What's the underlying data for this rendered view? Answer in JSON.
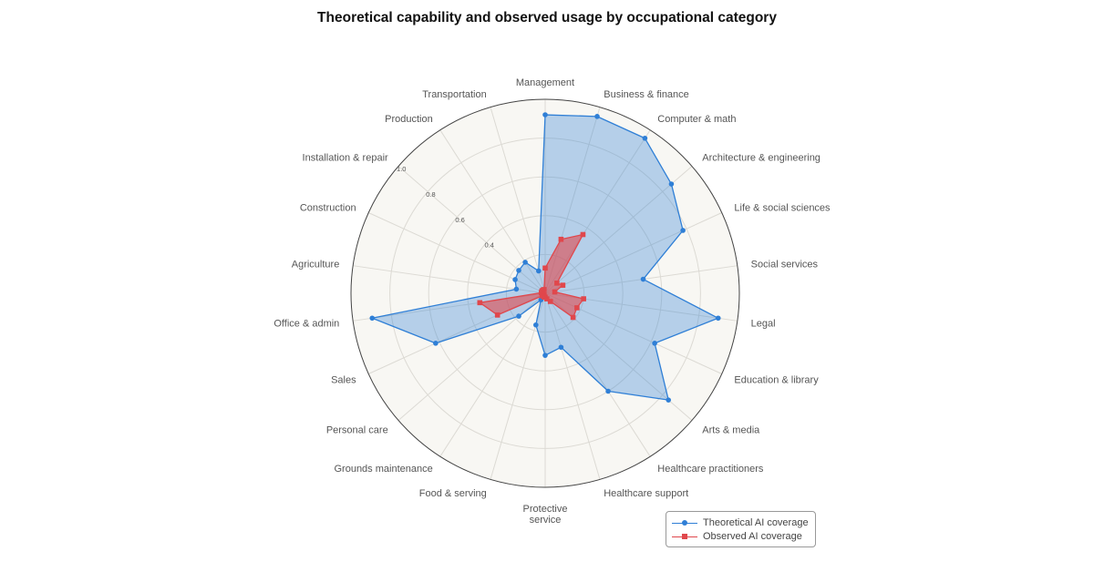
{
  "chart_data": {
    "type": "radar",
    "title": "Theoretical capability and observed usage by occupational category",
    "categories": [
      "Management",
      "Business & finance",
      "Computer & math",
      "Architecture & engineering",
      "Life & social sciences",
      "Social services",
      "Legal",
      "Education & library",
      "Arts & media",
      "Healthcare practitioners",
      "Healthcare support",
      "Protective service",
      "Food & serving",
      "Grounds maintenance",
      "Personal care",
      "Sales",
      "Office & admin",
      "Agriculture",
      "Construction",
      "Installation & repair",
      "Production",
      "Transportation"
    ],
    "radial_ticks": [
      0.4,
      0.6,
      0.8,
      1.0
    ],
    "rlim": [
      0,
      1.0
    ],
    "grid": true,
    "legend_position": "bottom-right",
    "series": [
      {
        "name": "Theoretical AI coverage",
        "color": "#2f7fd6",
        "marker": "circle",
        "values": [
          0.92,
          0.95,
          0.95,
          0.86,
          0.78,
          0.51,
          0.9,
          0.62,
          0.84,
          0.6,
          0.29,
          0.32,
          0.17,
          0.04,
          0.18,
          0.62,
          0.9,
          0.15,
          0.17,
          0.18,
          0.19,
          0.12
        ]
      },
      {
        "name": "Observed AI coverage",
        "color": "#e0474c",
        "marker": "square",
        "values": [
          0.13,
          0.29,
          0.36,
          0.08,
          0.1,
          0.05,
          0.2,
          0.18,
          0.19,
          0.05,
          0.03,
          0.02,
          0.02,
          0.01,
          0.02,
          0.27,
          0.34,
          0.02,
          0.02,
          0.02,
          0.02,
          0.02
        ]
      }
    ]
  }
}
